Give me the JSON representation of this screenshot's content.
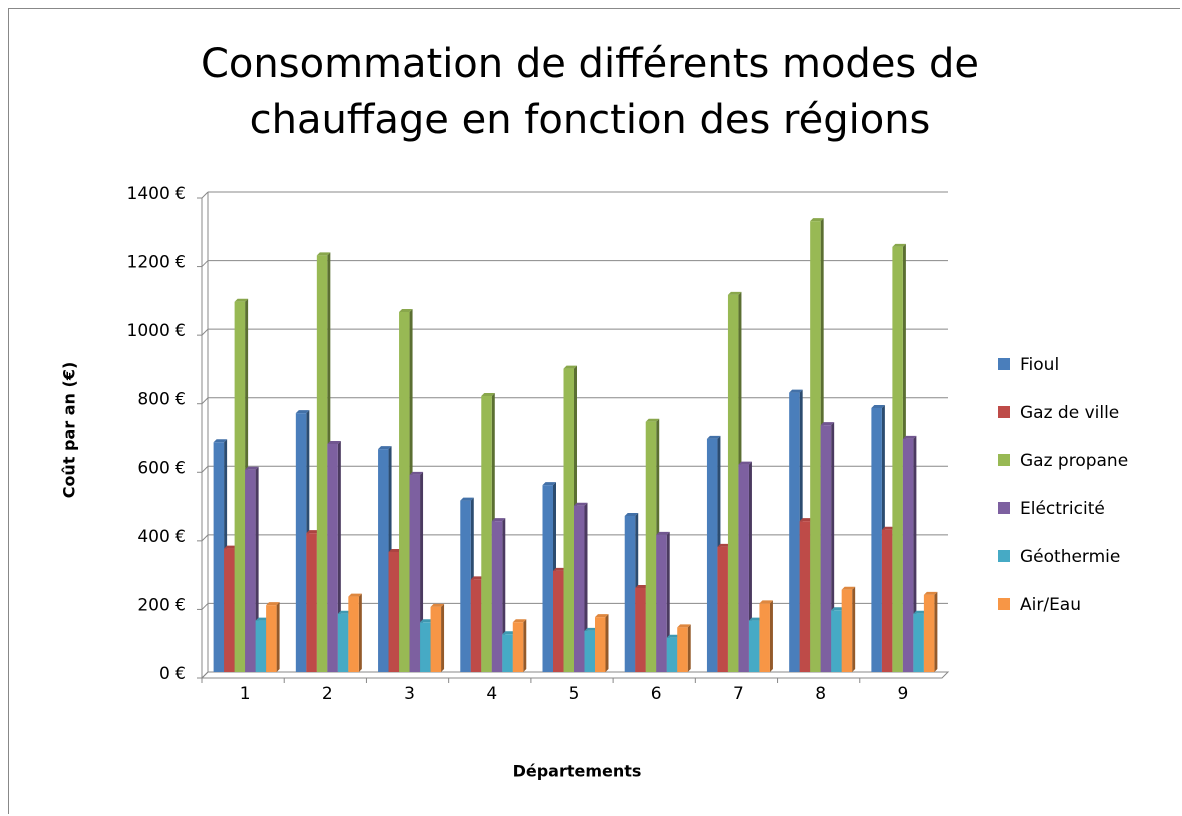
{
  "chart_data": {
    "type": "bar3d",
    "title": "Consommation de différents modes de chauffage en fonction des régions",
    "x_label": "Départements",
    "y_label": "Coût par an (€)",
    "categories": [
      "1",
      "2",
      "3",
      "4",
      "5",
      "6",
      "7",
      "8",
      "9"
    ],
    "series": [
      {
        "name": "Fioul",
        "color": "#4a7ebb",
        "values": [
          670,
          755,
          650,
          500,
          545,
          455,
          680,
          815,
          770
        ]
      },
      {
        "name": "Gaz de ville",
        "color": "#be4b48",
        "values": [
          360,
          405,
          350,
          270,
          295,
          245,
          365,
          440,
          415
        ]
      },
      {
        "name": "Gaz propane",
        "color": "#98b954",
        "values": [
          1080,
          1215,
          1050,
          805,
          885,
          730,
          1100,
          1315,
          1240
        ]
      },
      {
        "name": "Eléctricité",
        "color": "#7d60a0",
        "values": [
          590,
          665,
          575,
          440,
          485,
          400,
          605,
          720,
          680
        ]
      },
      {
        "name": "Géothermie",
        "color": "#46aac5",
        "values": [
          150,
          170,
          145,
          110,
          120,
          100,
          150,
          180,
          170
        ]
      },
      {
        "name": "Air/Eau",
        "color": "#f79646",
        "values": [
          195,
          220,
          190,
          145,
          160,
          130,
          200,
          240,
          225
        ]
      }
    ],
    "ylim": [
      0,
      1400
    ],
    "yticks": [
      {
        "value": 0,
        "label": "0 €"
      },
      {
        "value": 200,
        "label": "200 €"
      },
      {
        "value": 400,
        "label": "400 €"
      },
      {
        "value": 600,
        "label": "600 €"
      },
      {
        "value": 800,
        "label": "800 €"
      },
      {
        "value": 1000,
        "label": "1000 €"
      },
      {
        "value": 1200,
        "label": "1200 €"
      },
      {
        "value": 1400,
        "label": "1400 €"
      }
    ],
    "grid": true,
    "legend": "right"
  }
}
